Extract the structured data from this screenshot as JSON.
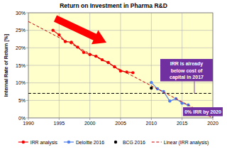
{
  "chart_data": {
    "type": "line",
    "title": "Return on Investment in Pharma R&D",
    "y_label": "Internal Rate of Return [%]",
    "xlim": [
      1990,
      2020
    ],
    "xticks": [
      1990,
      1995,
      2000,
      2005,
      2010,
      2015,
      2020
    ],
    "ylim": [
      0,
      30
    ],
    "yticks": [
      {
        "value": 0,
        "label": "0%"
      },
      {
        "value": 5,
        "label": "5%"
      },
      {
        "value": 10,
        "label": "10%"
      },
      {
        "value": 15,
        "label": "15%"
      },
      {
        "value": 20,
        "label": "20%"
      },
      {
        "value": 25,
        "label": "25%"
      },
      {
        "value": 30,
        "label": "30%"
      }
    ],
    "grid": true,
    "legend": "bottom",
    "series": [
      {
        "name": "IRR analysis",
        "color": "#ff0000",
        "marker": "circle",
        "line_style": "solid",
        "x": [
          1994,
          1995,
          1996,
          1997,
          1998,
          1999,
          2000,
          2001,
          2002,
          2003,
          2004,
          2005,
          2006,
          2007
        ],
        "values": [
          25,
          23.7,
          21.8,
          21.6,
          20.2,
          18.7,
          18.1,
          17.6,
          16.6,
          15.8,
          14.6,
          13.4,
          13.1,
          12.9
        ]
      },
      {
        "name": "Deloitte 2016",
        "color": "#4f7ff0",
        "marker": "circle",
        "line_style": "solid",
        "x": [
          2010,
          2011,
          2012,
          2013,
          2014,
          2015,
          2016
        ],
        "values": [
          10.1,
          8.3,
          7.5,
          4.8,
          5.5,
          4.2,
          3.7
        ]
      },
      {
        "name": "BCG 2016",
        "color": "#000000",
        "marker": "circle",
        "line_style": "none",
        "x": [
          2010
        ],
        "values": [
          8.5
        ]
      },
      {
        "name": "Linear (IRR analysis)",
        "color": "#cc0000",
        "marker": "none",
        "line_style": "dashed",
        "x": [
          1990,
          2020
        ],
        "values": [
          27.5,
          0
        ]
      }
    ],
    "reference_lines": [
      {
        "value": 7,
        "color": "#000000",
        "line_style": "dashed"
      }
    ],
    "annotations": [
      {
        "lines": [
          "IRR is already",
          "below cost of",
          "capital in 2017"
        ],
        "x": 2017,
        "y": 7,
        "color": "#7030a0"
      },
      {
        "lines": [
          "0% IRR by 2020"
        ],
        "x": 2020,
        "y": 0,
        "color": "#7030a0"
      }
    ]
  }
}
